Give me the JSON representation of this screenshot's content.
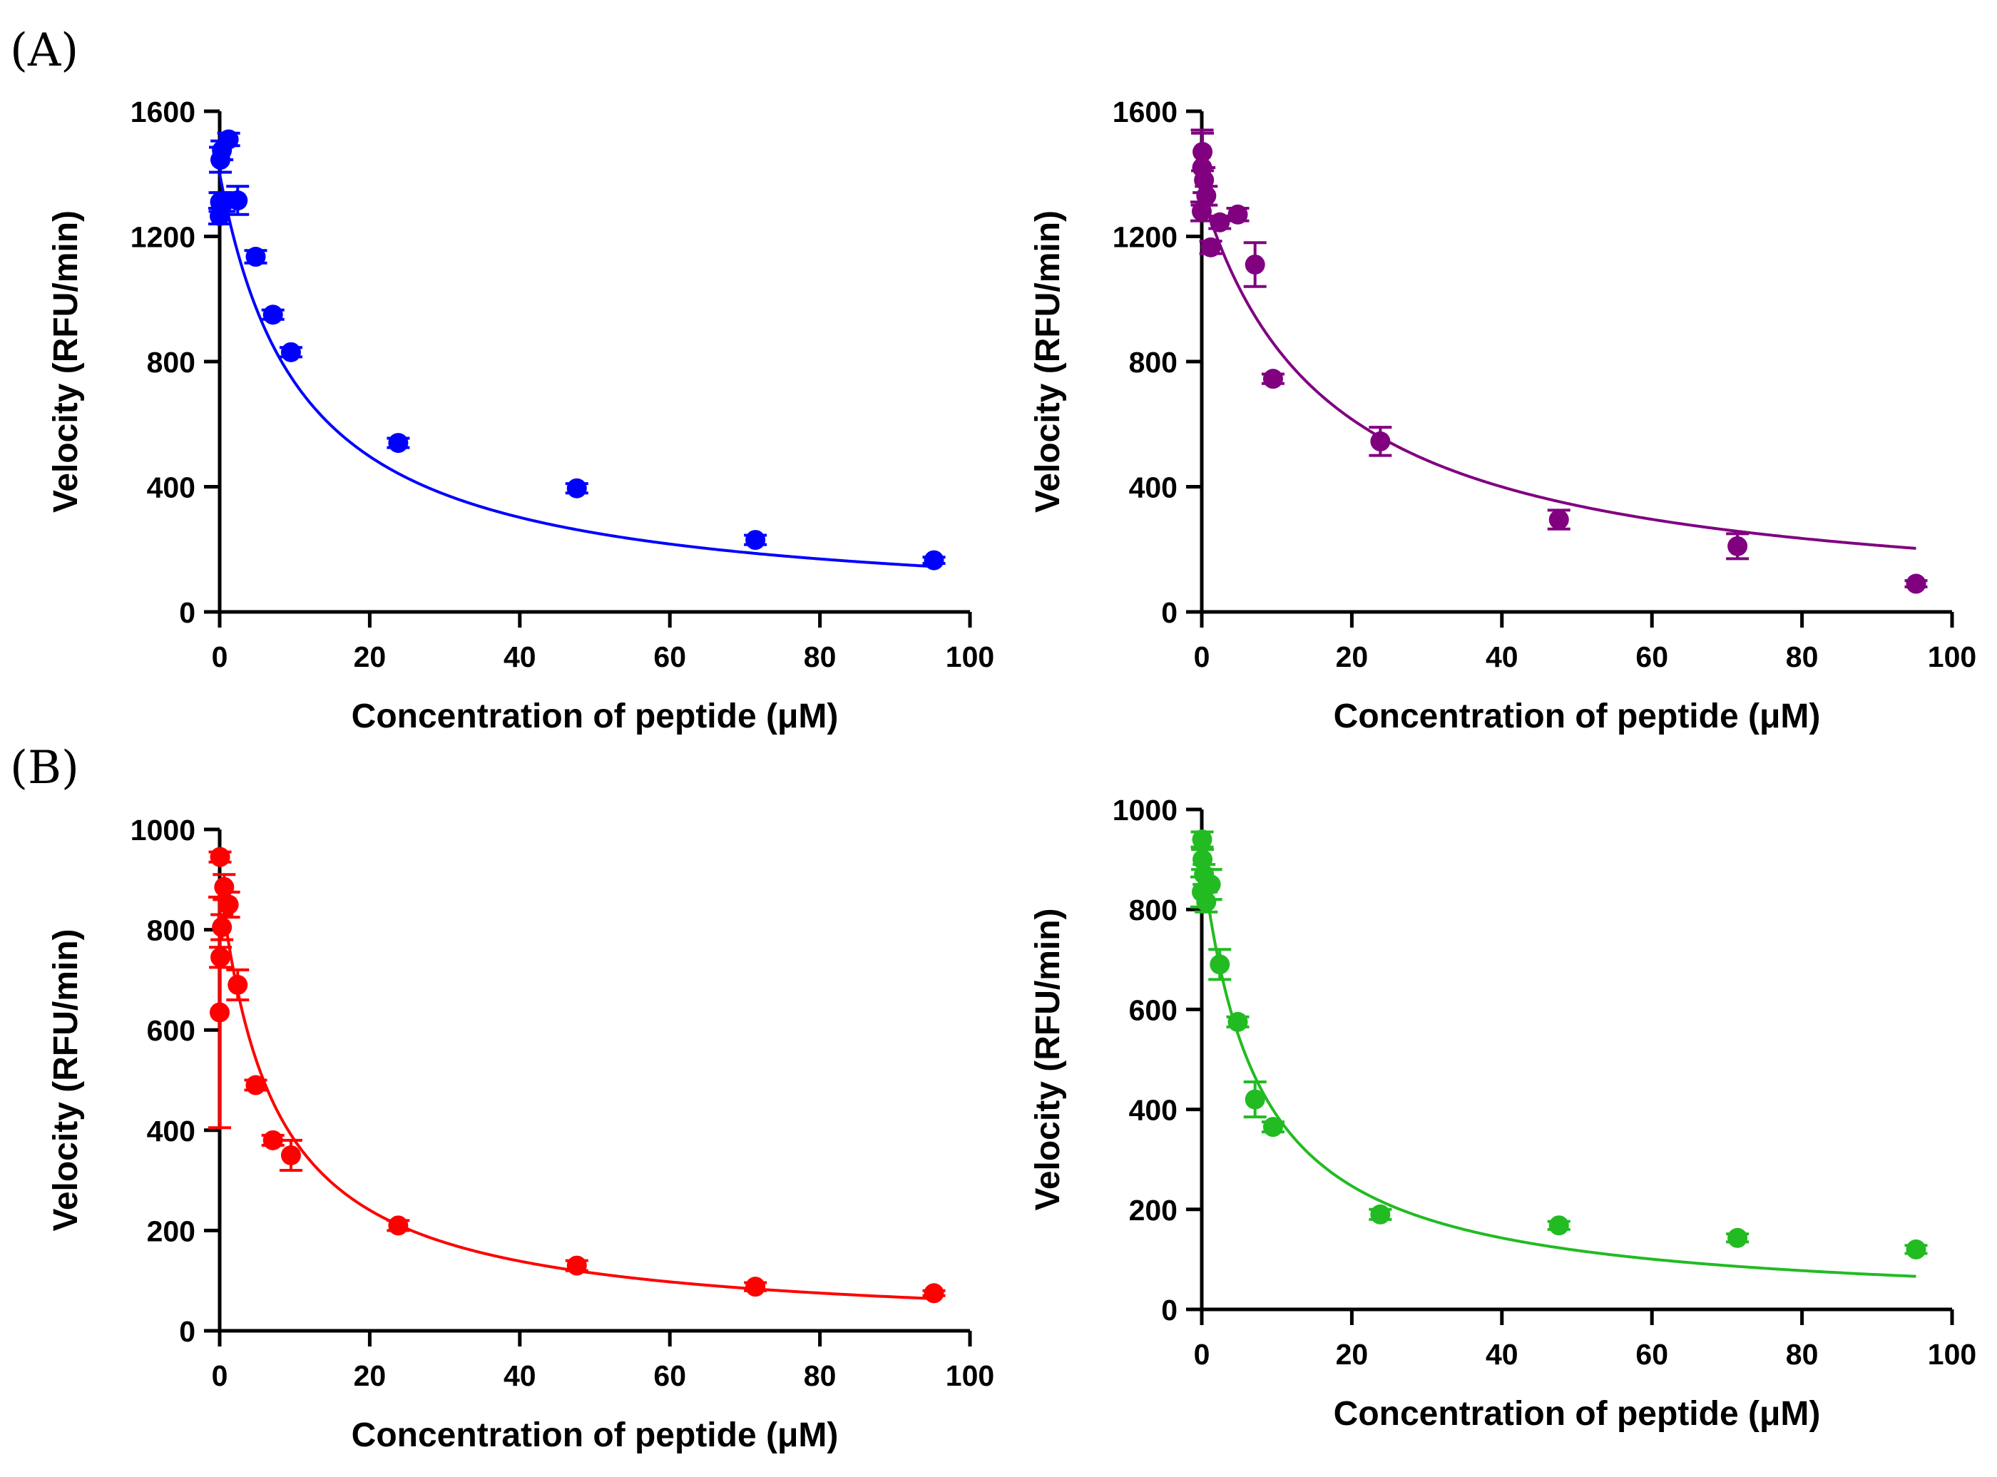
{
  "labels": {
    "A": "(A)",
    "B": "(B)"
  },
  "chart_data": [
    {
      "id": "a-left",
      "type": "scatter",
      "xlabel": "Concentration of peptide (μM)",
      "ylabel": "Velocity (RFU/min)",
      "xlim": [
        0,
        100
      ],
      "ylim": [
        0,
        1600
      ],
      "xticks": [
        0,
        20,
        40,
        60,
        80,
        100
      ],
      "yticks": [
        0,
        400,
        800,
        1200,
        1600
      ],
      "color": "#0000ff",
      "fit": {
        "kind": "inhibition",
        "y0": 1400,
        "ic50": 11
      },
      "points": [
        {
          "x": 0,
          "y": 1265,
          "err": 25
        },
        {
          "x": 0.05,
          "y": 1310,
          "err": 30
        },
        {
          "x": 0.1,
          "y": 1445,
          "err": 40
        },
        {
          "x": 0.3,
          "y": 1475,
          "err": 30
        },
        {
          "x": 0.6,
          "y": 1310,
          "err": 30
        },
        {
          "x": 1.2,
          "y": 1510,
          "err": 20
        },
        {
          "x": 2.4,
          "y": 1315,
          "err": 45
        },
        {
          "x": 4.8,
          "y": 1135,
          "err": 20
        },
        {
          "x": 7.1,
          "y": 950,
          "err": 15
        },
        {
          "x": 9.5,
          "y": 830,
          "err": 15
        },
        {
          "x": 23.8,
          "y": 540,
          "err": 15
        },
        {
          "x": 47.6,
          "y": 395,
          "err": 15
        },
        {
          "x": 71.4,
          "y": 230,
          "err": 15
        },
        {
          "x": 95.2,
          "y": 165,
          "err": 10
        }
      ]
    },
    {
      "id": "a-right",
      "type": "scatter",
      "xlabel": "Concentration of peptide (μM)",
      "ylabel": "Velocity (RFU/min)",
      "xlim": [
        0,
        100
      ],
      "ylim": [
        0,
        1600
      ],
      "xticks": [
        0,
        20,
        40,
        60,
        80,
        100
      ],
      "yticks": [
        0,
        400,
        800,
        1200,
        1600
      ],
      "color": "#800080",
      "fit": {
        "kind": "inhibition",
        "y0": 1340,
        "ic50": 17
      },
      "points": [
        {
          "x": 0,
          "y": 1280,
          "err": 30
        },
        {
          "x": 0.05,
          "y": 1420,
          "err": 120
        },
        {
          "x": 0.1,
          "y": 1470,
          "err": 60
        },
        {
          "x": 0.3,
          "y": 1380,
          "err": 40
        },
        {
          "x": 0.6,
          "y": 1330,
          "err": 30
        },
        {
          "x": 1.2,
          "y": 1165,
          "err": 20
        },
        {
          "x": 2.4,
          "y": 1245,
          "err": 20
        },
        {
          "x": 4.8,
          "y": 1270,
          "err": 20
        },
        {
          "x": 7.1,
          "y": 1110,
          "err": 70
        },
        {
          "x": 9.5,
          "y": 745,
          "err": 15
        },
        {
          "x": 23.8,
          "y": 545,
          "err": 45
        },
        {
          "x": 47.6,
          "y": 295,
          "err": 30
        },
        {
          "x": 71.4,
          "y": 210,
          "err": 40
        },
        {
          "x": 95.2,
          "y": 90,
          "err": 10
        }
      ]
    },
    {
      "id": "b-left",
      "type": "scatter",
      "xlabel": "Concentration of peptide (μM)",
      "ylabel": "Velocity (RFU/min)",
      "xlim": [
        0,
        100
      ],
      "ylim": [
        0,
        1000
      ],
      "xticks": [
        0,
        20,
        40,
        60,
        80,
        100
      ],
      "yticks": [
        0,
        200,
        400,
        600,
        800,
        1000
      ],
      "color": "#ff0000",
      "fit": {
        "kind": "inhibition",
        "y0": 900,
        "ic50": 7.3
      },
      "points": [
        {
          "x": 0,
          "y": 635,
          "err": 230
        },
        {
          "x": 0.05,
          "y": 945,
          "err": 10
        },
        {
          "x": 0.1,
          "y": 745,
          "err": 20
        },
        {
          "x": 0.3,
          "y": 805,
          "err": 25
        },
        {
          "x": 0.6,
          "y": 885,
          "err": 25
        },
        {
          "x": 1.2,
          "y": 850,
          "err": 25
        },
        {
          "x": 2.4,
          "y": 690,
          "err": 30
        },
        {
          "x": 4.8,
          "y": 490,
          "err": 10
        },
        {
          "x": 7.1,
          "y": 380,
          "err": 10
        },
        {
          "x": 9.5,
          "y": 350,
          "err": 30
        },
        {
          "x": 23.8,
          "y": 210,
          "err": 10
        },
        {
          "x": 47.6,
          "y": 130,
          "err": 10
        },
        {
          "x": 71.4,
          "y": 88,
          "err": 8
        },
        {
          "x": 95.2,
          "y": 75,
          "err": 5
        }
      ]
    },
    {
      "id": "b-right",
      "type": "scatter",
      "xlabel": "Concentration of peptide (μM)",
      "ylabel": "Velocity (RFU/min)",
      "xlim": [
        0,
        100
      ],
      "ylim": [
        0,
        1000
      ],
      "xticks": [
        0,
        20,
        40,
        60,
        80,
        100
      ],
      "yticks": [
        0,
        200,
        400,
        600,
        800,
        1000
      ],
      "color": "#22bb22",
      "fit": {
        "kind": "inhibition",
        "y0": 905,
        "ic50": 7.5
      },
      "points": [
        {
          "x": 0,
          "y": 835,
          "err": 30
        },
        {
          "x": 0.05,
          "y": 940,
          "err": 15
        },
        {
          "x": 0.1,
          "y": 900,
          "err": 20
        },
        {
          "x": 0.3,
          "y": 870,
          "err": 20
        },
        {
          "x": 0.6,
          "y": 815,
          "err": 20
        },
        {
          "x": 1.2,
          "y": 850,
          "err": 30
        },
        {
          "x": 2.4,
          "y": 690,
          "err": 30
        },
        {
          "x": 4.8,
          "y": 575,
          "err": 10
        },
        {
          "x": 7.1,
          "y": 420,
          "err": 35
        },
        {
          "x": 9.5,
          "y": 365,
          "err": 10
        },
        {
          "x": 23.8,
          "y": 190,
          "err": 10
        },
        {
          "x": 47.6,
          "y": 168,
          "err": 8
        },
        {
          "x": 71.4,
          "y": 143,
          "err": 8
        },
        {
          "x": 95.2,
          "y": 120,
          "err": 8
        }
      ]
    }
  ]
}
